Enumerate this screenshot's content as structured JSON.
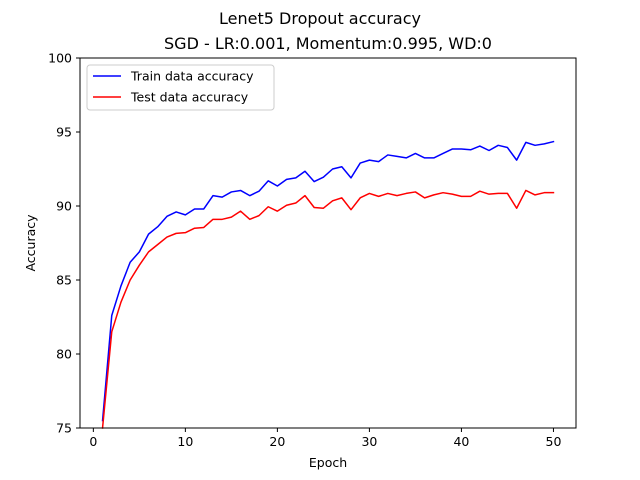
{
  "chart_data": {
    "type": "line",
    "title": "Lenet5 Dropout accuracy",
    "subtitle": "SGD -  LR:0.001, Momentum:0.995, WD:0",
    "xlabel": "Epoch",
    "ylabel": "Accuracy",
    "xlim": [
      -1.45,
      52.45
    ],
    "ylim": [
      75,
      100
    ],
    "xticks": [
      0,
      10,
      20,
      30,
      40,
      50
    ],
    "yticks": [
      75,
      80,
      85,
      90,
      95,
      100
    ],
    "grid": false,
    "legend_position": "top-left",
    "x": [
      1,
      2,
      3,
      4,
      5,
      6,
      7,
      8,
      9,
      10,
      11,
      12,
      13,
      14,
      15,
      16,
      17,
      18,
      19,
      20,
      21,
      22,
      23,
      24,
      25,
      26,
      27,
      28,
      29,
      30,
      31,
      32,
      33,
      34,
      35,
      36,
      37,
      38,
      39,
      40,
      41,
      42,
      43,
      44,
      45,
      46,
      47,
      48,
      49,
      50
    ],
    "series": [
      {
        "name": "Train data accuracy",
        "color": "#0000ff",
        "values": [
          75.5,
          82.6,
          84.6,
          86.2,
          86.9,
          88.1,
          88.6,
          89.3,
          89.6,
          89.4,
          89.8,
          89.8,
          90.7,
          90.6,
          90.95,
          91.05,
          90.7,
          91.0,
          91.7,
          91.35,
          91.8,
          91.9,
          92.35,
          91.65,
          91.95,
          92.5,
          92.65,
          91.9,
          92.9,
          93.1,
          93.0,
          93.45,
          93.35,
          93.25,
          93.55,
          93.25,
          93.25,
          93.55,
          93.85,
          93.85,
          93.8,
          94.05,
          93.75,
          94.1,
          93.95,
          93.1,
          94.3,
          94.1,
          94.2,
          94.35
        ]
      },
      {
        "name": "Test data accuracy",
        "color": "#ff0000",
        "values": [
          75.0,
          81.5,
          83.5,
          85.0,
          86.0,
          86.9,
          87.4,
          87.9,
          88.15,
          88.2,
          88.5,
          88.55,
          89.1,
          89.1,
          89.25,
          89.65,
          89.1,
          89.35,
          89.95,
          89.65,
          90.05,
          90.2,
          90.7,
          89.9,
          89.85,
          90.35,
          90.55,
          89.75,
          90.55,
          90.85,
          90.65,
          90.85,
          90.7,
          90.85,
          90.95,
          90.55,
          90.75,
          90.9,
          90.8,
          90.65,
          90.65,
          91.0,
          90.8,
          90.85,
          90.85,
          89.85,
          91.05,
          90.75,
          90.9,
          90.9
        ]
      }
    ]
  }
}
